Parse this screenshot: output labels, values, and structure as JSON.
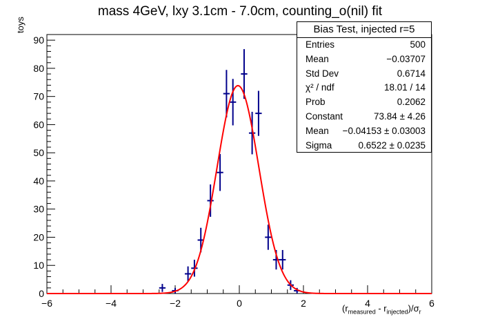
{
  "chart_data": {
    "type": "scatter",
    "title": "mass 4GeV, lxy 3.1cm - 7.0cm, counting_o(nil) fit",
    "ylabel": "toys",
    "xlabel": "(r_measured - r_injected)/σ_r",
    "xlim": [
      -6,
      6
    ],
    "ylim": [
      0,
      92
    ],
    "x_ticks": [
      -6,
      -4,
      -2,
      0,
      2,
      4,
      6
    ],
    "y_ticks": [
      0,
      10,
      20,
      30,
      40,
      50,
      60,
      70,
      80,
      90
    ],
    "grid": false,
    "histogram": {
      "bin_width": 0.2,
      "color": "#00008b",
      "points": [
        {
          "x": -2.4,
          "y": 2
        },
        {
          "x": -2.0,
          "y": 1
        },
        {
          "x": -1.6,
          "y": 7
        },
        {
          "x": -1.4,
          "y": 9
        },
        {
          "x": -1.2,
          "y": 19
        },
        {
          "x": -0.9,
          "y": 33
        },
        {
          "x": -0.6,
          "y": 43
        },
        {
          "x": -0.4,
          "y": 71
        },
        {
          "x": -0.2,
          "y": 68
        },
        {
          "x": 0.15,
          "y": 78
        },
        {
          "x": 0.4,
          "y": 57
        },
        {
          "x": 0.6,
          "y": 64
        },
        {
          "x": 0.9,
          "y": 20
        },
        {
          "x": 1.15,
          "y": 12
        },
        {
          "x": 1.35,
          "y": 12
        },
        {
          "x": 1.6,
          "y": 3
        },
        {
          "x": 1.8,
          "y": 1
        }
      ]
    },
    "fit": {
      "type": "gaussian",
      "color": "#ff0000",
      "constant": 73.84,
      "mean": -0.04153,
      "sigma": 0.6522
    }
  },
  "statbox": {
    "title": "Bias Test, injected r=5",
    "rows": [
      {
        "label": "Entries",
        "value": "500"
      },
      {
        "label": "Mean",
        "value": "−0.03707"
      },
      {
        "label": "Std Dev",
        "value": "0.6714"
      },
      {
        "label": "χ² / ndf",
        "value": "18.01 / 14"
      },
      {
        "label": "Prob",
        "value": "0.2062"
      },
      {
        "label": "Constant",
        "value": "73.84 ± 4.26"
      },
      {
        "label": "Mean",
        "value": "−0.04153 ± 0.03003"
      },
      {
        "label": "Sigma",
        "value": "0.6522 ± 0.0235"
      }
    ]
  }
}
